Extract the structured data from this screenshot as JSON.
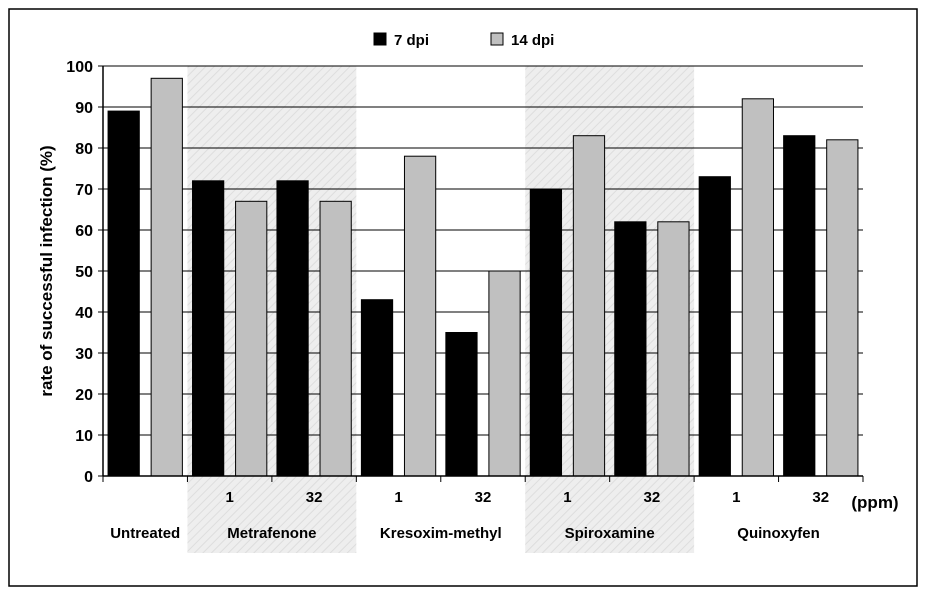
{
  "chart_data": {
    "type": "bar",
    "ylabel": "rate of successful infection (%)",
    "xunit_label": "(ppm)",
    "ylim": [
      0,
      100
    ],
    "yticks": [
      0,
      10,
      20,
      30,
      40,
      50,
      60,
      70,
      80,
      90,
      100
    ],
    "grid": true,
    "legend_position": "top-center",
    "categories": [
      "Untreated",
      "Metrafenone 1",
      "Metrafenone 32",
      "Kresoxim-methyl 1",
      "Kresoxim-methyl 32",
      "Spiroxamine 1",
      "Spiroxamine 32",
      "Quinoxyfen 1",
      "Quinoxyfen 32"
    ],
    "dose_labels": [
      "",
      "1",
      "32",
      "1",
      "32",
      "1",
      "32",
      "1",
      "32"
    ],
    "groups": [
      {
        "name": "Untreated",
        "shaded": false
      },
      {
        "name": "Metrafenone",
        "shaded": true
      },
      {
        "name": "Kresoxim-methyl",
        "shaded": false
      },
      {
        "name": "Spiroxamine",
        "shaded": true
      },
      {
        "name": "Quinoxyfen",
        "shaded": false
      }
    ],
    "series": [
      {
        "name": "7 dpi",
        "color": "#000000",
        "values": [
          89,
          72,
          72,
          43,
          35,
          70,
          62,
          73,
          83
        ]
      },
      {
        "name": "14 dpi",
        "color": "#c0c0c0",
        "values": [
          97,
          67,
          67,
          78,
          50,
          83,
          62,
          92,
          82
        ]
      }
    ]
  }
}
